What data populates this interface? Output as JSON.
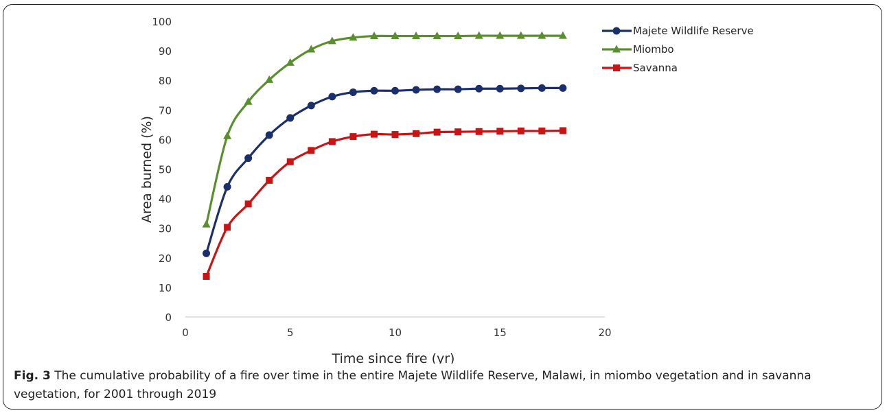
{
  "chart_data": {
    "type": "line",
    "xlabel": "Time since fire (yr)",
    "ylabel": "Area burned (%)",
    "xlim": [
      0,
      20
    ],
    "ylim": [
      0,
      100
    ],
    "xticks": [
      0,
      5,
      10,
      15,
      20
    ],
    "yticks": [
      0,
      10,
      20,
      30,
      40,
      50,
      60,
      70,
      80,
      90,
      100
    ],
    "grid": false,
    "legend_position": "top-right",
    "x": [
      1,
      2,
      3,
      4,
      5,
      6,
      7,
      8,
      9,
      10,
      11,
      12,
      13,
      14,
      15,
      16,
      17,
      18
    ],
    "series": [
      {
        "name": "Majete Wildlife Reserve",
        "color": "#1a2f6b",
        "marker": "circle",
        "values": [
          21.5,
          44,
          53.7,
          61.5,
          67.3,
          71.5,
          74.5,
          76,
          76.5,
          76.5,
          76.8,
          77,
          77,
          77.2,
          77.2,
          77.3,
          77.4,
          77.4
        ]
      },
      {
        "name": "Miombo",
        "color": "#5a8f2e",
        "marker": "triangle",
        "values": [
          31.3,
          61.2,
          72.8,
          80.2,
          86,
          90.5,
          93.3,
          94.5,
          95,
          95,
          95,
          95,
          95,
          95.1,
          95.1,
          95.1,
          95.1,
          95.1
        ]
      },
      {
        "name": "Savanna",
        "color": "#c81414",
        "marker": "square",
        "values": [
          13.7,
          30.3,
          38.2,
          46.2,
          52.5,
          56.3,
          59.3,
          61,
          61.8,
          61.7,
          62,
          62.5,
          62.6,
          62.7,
          62.8,
          62.9,
          62.9,
          63
        ]
      }
    ]
  },
  "caption": {
    "label": "Fig. 3",
    "text": " The cumulative probability of a fire over time in the entire Majete Wildlife Reserve, Malawi, in miombo vegetation and in savanna vegetation, for 2001 through 2019"
  }
}
